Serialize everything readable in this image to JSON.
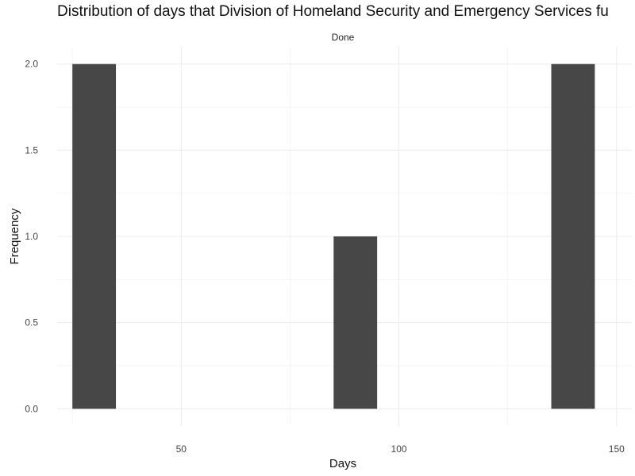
{
  "chart_data": {
    "type": "bar",
    "title": "Distribution of days that Division of Homeland Security and Emergency Services fu",
    "facet_label": "Done",
    "xlabel": "Days",
    "ylabel": "Frequency",
    "xlim": [
      21.5,
      153.5
    ],
    "ylim": [
      -0.1,
      2.1
    ],
    "x_ticks": [
      50,
      100,
      150
    ],
    "x_ticks_minor": [
      25,
      75,
      125
    ],
    "y_ticks": [
      0.0,
      0.5,
      1.0,
      1.5,
      2.0
    ],
    "y_tick_labels": [
      "0.0",
      "0.5",
      "1.0",
      "1.5",
      "2.0"
    ],
    "y_ticks_minor": [
      0.25,
      0.75,
      1.25,
      1.75
    ],
    "bars": [
      {
        "x0": 25,
        "x1": 35,
        "value": 2
      },
      {
        "x0": 85,
        "x1": 95,
        "value": 1
      },
      {
        "x0": 135,
        "x1": 145,
        "value": 2
      }
    ],
    "grid": true,
    "colors": {
      "bar": "#474747",
      "grid_major": "#ebebeb",
      "grid_minor": "#f5f5f5",
      "background": "#ffffff"
    }
  }
}
